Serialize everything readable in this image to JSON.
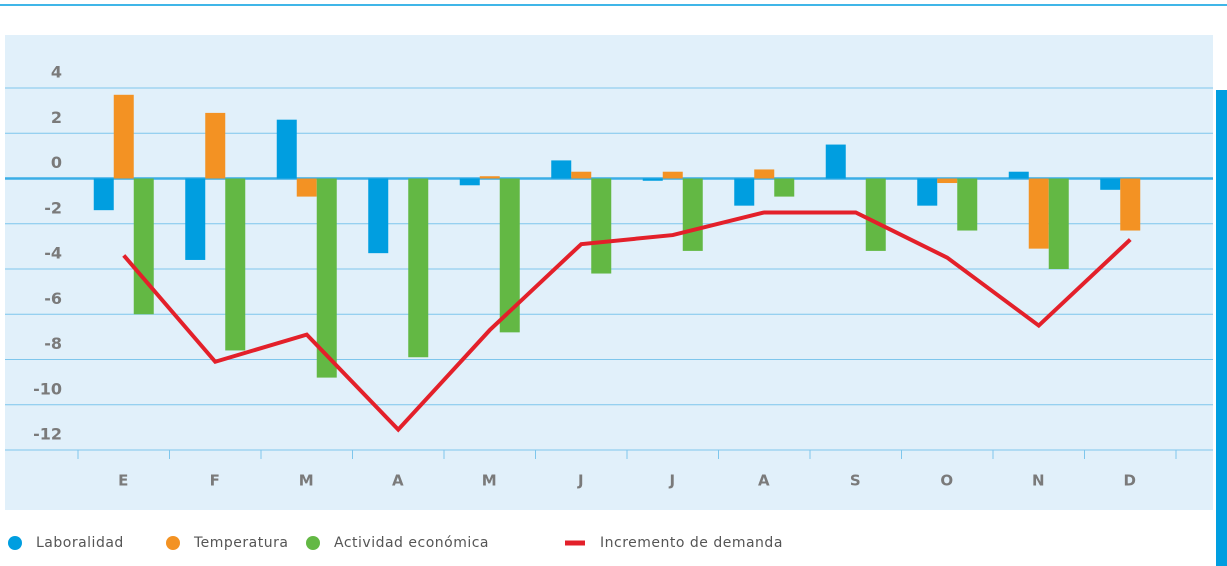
{
  "chart_data": {
    "type": "bar",
    "categories": [
      "E",
      "F",
      "M",
      "A",
      "M",
      "J",
      "J",
      "A",
      "S",
      "O",
      "N",
      "D"
    ],
    "series": [
      {
        "name": "Laboralidad",
        "color": "#009ee0",
        "values": [
          -1.4,
          -3.6,
          2.6,
          -3.3,
          -0.3,
          0.8,
          -0.1,
          -1.2,
          1.5,
          -1.2,
          0.3,
          -0.5
        ]
      },
      {
        "name": "Temperatura",
        "color": "#f39223",
        "values": [
          3.7,
          2.9,
          -0.8,
          0,
          0.1,
          0.3,
          0.3,
          0.4,
          0,
          -0.2,
          -3.1,
          -2.3
        ]
      },
      {
        "name": "Actividad económica",
        "color": "#63b844",
        "values": [
          -6.0,
          -7.6,
          -8.8,
          -7.9,
          -6.8,
          -4.2,
          -3.2,
          -0.8,
          -3.2,
          -2.3,
          -4.0,
          0
        ]
      },
      {
        "name": "Incremento de demanda",
        "color": "#e3202a",
        "type": "line",
        "values": [
          -3.4,
          -8.1,
          -6.9,
          -11.1,
          -6.7,
          -2.9,
          -2.5,
          -1.5,
          -1.5,
          -3.5,
          -6.5,
          -2.7
        ]
      }
    ],
    "ylim": [
      -12,
      4
    ],
    "yticks": [
      4,
      2,
      0,
      -2,
      -4,
      -6,
      -8,
      -10,
      -12
    ],
    "grid": true
  }
}
